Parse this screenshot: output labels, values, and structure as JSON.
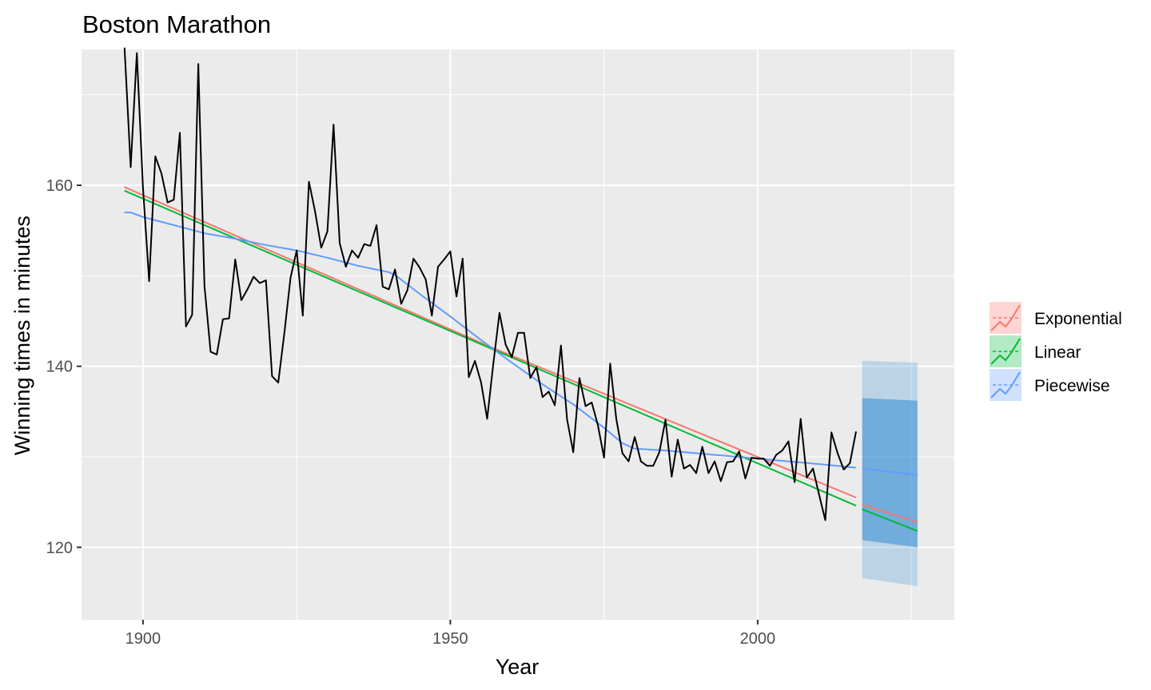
{
  "chart_data": {
    "type": "line",
    "title": "Boston Marathon",
    "xlabel": "Year",
    "ylabel": "Winning times in minutes",
    "xlim": [
      1890,
      2032
    ],
    "ylim": [
      112,
      175
    ],
    "x_ticks": [
      1900,
      1950,
      2000
    ],
    "y_ticks": [
      120,
      140,
      160
    ],
    "x_tick_labels": [
      "1900",
      "1950",
      "2000"
    ],
    "y_tick_labels": [
      "120",
      "140",
      "160"
    ],
    "grid": true,
    "legend_position": "right",
    "legend": [
      {
        "label": "Exponential",
        "color": "#f8766d"
      },
      {
        "label": "Linear",
        "color": "#00ba38"
      },
      {
        "label": "Piecewise",
        "color": "#619cff"
      }
    ],
    "observed": {
      "color": "#000000",
      "x": [
        1897,
        1898,
        1899,
        1900,
        1901,
        1902,
        1903,
        1904,
        1905,
        1906,
        1907,
        1908,
        1909,
        1910,
        1911,
        1912,
        1913,
        1914,
        1915,
        1916,
        1917,
        1918,
        1919,
        1920,
        1921,
        1922,
        1923,
        1924,
        1925,
        1926,
        1927,
        1928,
        1929,
        1930,
        1931,
        1932,
        1933,
        1934,
        1935,
        1936,
        1937,
        1938,
        1939,
        1940,
        1941,
        1942,
        1943,
        1944,
        1945,
        1946,
        1947,
        1948,
        1949,
        1950,
        1951,
        1952,
        1953,
        1954,
        1955,
        1956,
        1957,
        1958,
        1959,
        1960,
        1961,
        1962,
        1963,
        1964,
        1965,
        1966,
        1967,
        1968,
        1969,
        1970,
        1971,
        1972,
        1973,
        1974,
        1975,
        1976,
        1977,
        1978,
        1979,
        1980,
        1981,
        1982,
        1983,
        1984,
        1985,
        1986,
        1987,
        1988,
        1989,
        1990,
        1991,
        1992,
        1993,
        1994,
        1995,
        1996,
        1997,
        1998,
        1999,
        2000,
        2001,
        2002,
        2003,
        2004,
        2005,
        2006,
        2007,
        2008,
        2009,
        2010,
        2011,
        2012,
        2013,
        2014,
        2015,
        2016
      ],
      "values": [
        175.2,
        162.0,
        174.6,
        159.7,
        149.4,
        163.2,
        161.3,
        158.1,
        158.4,
        165.8,
        144.4,
        145.7,
        173.4,
        148.9,
        141.6,
        141.3,
        145.2,
        145.3,
        151.8,
        147.3,
        148.5,
        149.9,
        149.2,
        149.5,
        138.9,
        138.2,
        143.7,
        149.8,
        152.8,
        145.6,
        160.4,
        157.1,
        153.1,
        154.9,
        166.7,
        153.6,
        151.0,
        152.8,
        152.0,
        153.5,
        153.3,
        155.6,
        148.8,
        148.5,
        150.7,
        146.9,
        148.4,
        151.9,
        150.9,
        149.6,
        145.6,
        151.0,
        151.8,
        152.7,
        147.7,
        151.9,
        138.8,
        140.6,
        138.2,
        134.2,
        140.3,
        145.9,
        142.4,
        141.0,
        143.7,
        143.7,
        138.7,
        139.9,
        136.6,
        137.2,
        135.7,
        142.3,
        134.1,
        130.5,
        138.7,
        135.6,
        136.0,
        133.5,
        129.9,
        140.3,
        134.2,
        130.4,
        129.5,
        132.2,
        129.5,
        129.0,
        129.0,
        130.5,
        134.1,
        127.8,
        131.9,
        128.7,
        129.1,
        128.2,
        131.1,
        128.2,
        129.5,
        127.3,
        129.4,
        129.5,
        130.6,
        127.6,
        129.9,
        129.8,
        129.8,
        129.0,
        130.2,
        130.7,
        131.7,
        127.2,
        134.2,
        127.7,
        128.7,
        125.8,
        123.0,
        132.7,
        130.4,
        128.6,
        129.3,
        132.8
      ]
    },
    "series": [
      {
        "name": "Exponential",
        "color": "#f8766d",
        "fitted": {
          "x": [
            1897,
            1957,
            2016
          ],
          "values": [
            159.8,
            142.0,
            125.5
          ]
        },
        "forecast": {
          "x": [
            2017,
            2026
          ],
          "values": [
            124.7,
            122.8
          ]
        }
      },
      {
        "name": "Linear",
        "color": "#00ba38",
        "fitted": {
          "x": [
            1897,
            2016
          ],
          "values": [
            159.4,
            124.6
          ]
        },
        "forecast": {
          "x": [
            2017,
            2026
          ],
          "values": [
            124.2,
            121.8
          ]
        }
      },
      {
        "name": "Piecewise",
        "color": "#619cff",
        "fitted": {
          "x": [
            1897,
            1898,
            1900,
            1905,
            1910,
            1915,
            1920,
            1925,
            1930,
            1935,
            1940,
            1941,
            1945,
            1950,
            1955,
            1960,
            1965,
            1970,
            1975,
            1978,
            1980,
            1985,
            1990,
            1995,
            2000,
            2005,
            2010,
            2016
          ],
          "values": [
            157.0,
            157.0,
            156.5,
            155.6,
            154.7,
            154.1,
            153.4,
            152.8,
            152.0,
            151.1,
            150.4,
            150.1,
            148.0,
            145.5,
            142.9,
            140.4,
            138.0,
            135.8,
            133.2,
            131.5,
            130.9,
            130.7,
            130.4,
            130.1,
            129.8,
            129.5,
            129.2,
            128.8
          ]
        },
        "forecast": {
          "x": [
            2017,
            2026
          ],
          "values": [
            128.7,
            128.0
          ]
        }
      }
    ],
    "forecast_interval": {
      "color": "#0072cc",
      "x": [
        2017,
        2026
      ],
      "lower80": [
        120.8,
        120.0
      ],
      "upper80": [
        136.5,
        136.2
      ],
      "lower95": [
        116.6,
        115.7
      ],
      "upper95": [
        140.6,
        140.4
      ]
    }
  }
}
